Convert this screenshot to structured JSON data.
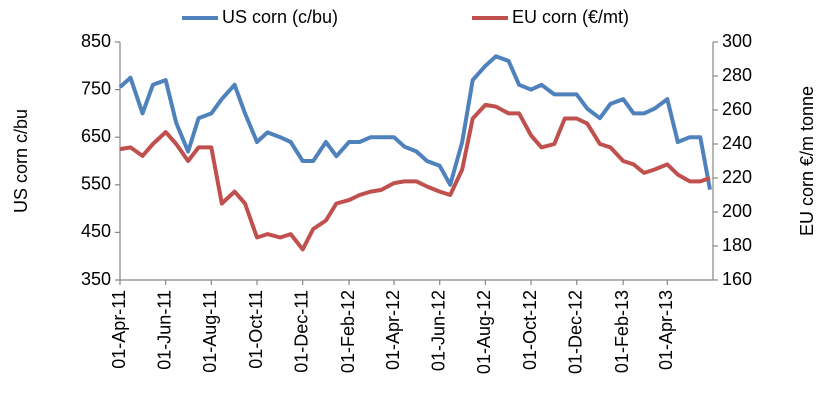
{
  "chart_data": {
    "type": "line",
    "x": [
      "2011-04-01",
      "2011-04-15",
      "2011-05-01",
      "2011-05-15",
      "2011-06-01",
      "2011-06-15",
      "2011-07-01",
      "2011-07-15",
      "2011-08-01",
      "2011-08-15",
      "2011-09-01",
      "2011-09-15",
      "2011-10-01",
      "2011-10-15",
      "2011-11-01",
      "2011-11-15",
      "2011-12-01",
      "2011-12-15",
      "2012-01-01",
      "2012-01-15",
      "2012-02-01",
      "2012-02-15",
      "2012-03-01",
      "2012-03-15",
      "2012-04-01",
      "2012-04-15",
      "2012-05-01",
      "2012-05-15",
      "2012-06-01",
      "2012-06-15",
      "2012-07-01",
      "2012-07-15",
      "2012-08-01",
      "2012-08-15",
      "2012-09-01",
      "2012-09-15",
      "2012-10-01",
      "2012-10-15",
      "2012-11-01",
      "2012-11-15",
      "2012-12-01",
      "2012-12-15",
      "2013-01-01",
      "2013-01-15",
      "2013-02-01",
      "2013-02-15",
      "2013-03-01",
      "2013-03-15",
      "2013-04-01",
      "2013-04-15",
      "2013-05-01",
      "2013-05-15",
      "2013-05-28"
    ],
    "series": [
      {
        "name": "US corn (c/bu)",
        "color": "#4f81bd",
        "axis": "y",
        "values": [
          755,
          775,
          700,
          760,
          770,
          680,
          620,
          690,
          700,
          730,
          760,
          700,
          640,
          660,
          650,
          640,
          600,
          600,
          640,
          610,
          640,
          640,
          650,
          650,
          650,
          630,
          620,
          600,
          590,
          550,
          640,
          770,
          800,
          820,
          810,
          760,
          750,
          760,
          740,
          740,
          740,
          710,
          690,
          720,
          730,
          700,
          700,
          710,
          730,
          640,
          650,
          650,
          540
        ]
      },
      {
        "name": "EU corn (€/mt)",
        "color": "#c0504d",
        "axis": "y2",
        "values": [
          237,
          238,
          233,
          240,
          247,
          240,
          230,
          238,
          238,
          205,
          212,
          205,
          185,
          187,
          185,
          187,
          178,
          190,
          195,
          205,
          207,
          210,
          212,
          213,
          217,
          218,
          218,
          215,
          212,
          210,
          225,
          255,
          263,
          262,
          258,
          258,
          245,
          238,
          240,
          255,
          255,
          252,
          240,
          238,
          230,
          228,
          223,
          225,
          228,
          222,
          218,
          218,
          220
        ]
      }
    ],
    "ylabel": "US corn c/bu",
    "y2label": "EU corn €/m tonne",
    "xlim": [
      "2011-04-01",
      "2013-06-01"
    ],
    "xticks": [
      {
        "value": "2011-04-01",
        "label": "01-Apr-11"
      },
      {
        "value": "2011-06-01",
        "label": "01-Jun-11"
      },
      {
        "value": "2011-08-01",
        "label": "01-Aug-11"
      },
      {
        "value": "2011-10-01",
        "label": "01-Oct-11"
      },
      {
        "value": "2011-12-01",
        "label": "01-Dec-11"
      },
      {
        "value": "2012-02-01",
        "label": "01-Feb-12"
      },
      {
        "value": "2012-04-01",
        "label": "01-Apr-12"
      },
      {
        "value": "2012-06-01",
        "label": "01-Jun-12"
      },
      {
        "value": "2012-08-01",
        "label": "01-Aug-12"
      },
      {
        "value": "2012-10-01",
        "label": "01-Oct-12"
      },
      {
        "value": "2012-12-01",
        "label": "01-Dec-12"
      },
      {
        "value": "2013-02-01",
        "label": "01-Feb-13"
      },
      {
        "value": "2013-04-01",
        "label": "01-Apr-13"
      }
    ],
    "ylim": [
      350,
      850
    ],
    "yticks": [
      350,
      450,
      550,
      650,
      750,
      850
    ],
    "y2lim": [
      160,
      300
    ],
    "y2ticks": [
      160,
      180,
      200,
      220,
      240,
      260,
      280,
      300
    ],
    "grid": false,
    "legend": "top"
  }
}
